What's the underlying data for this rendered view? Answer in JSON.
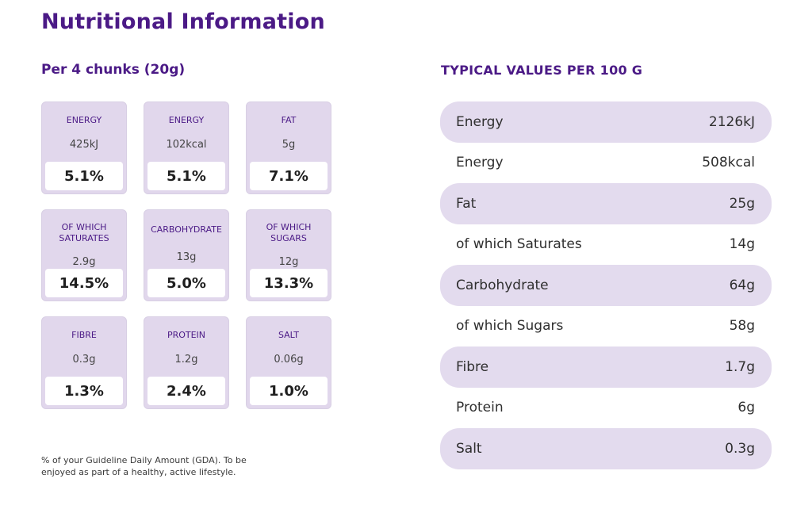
{
  "page": {
    "title": "Nutritional Information",
    "per_portion_heading": "Per 4 chunks (20g)",
    "typical_values_heading": "TYPICAL VALUES PER 100 G",
    "footnote": "% of your Guideline Daily Amount (GDA). To be enjoyed as part of a healthy, active lifestyle."
  },
  "gda_cards": [
    {
      "label": "ENERGY",
      "amount": "425kJ",
      "percent": "5.1%"
    },
    {
      "label": "ENERGY",
      "amount": "102kcal",
      "percent": "5.1%"
    },
    {
      "label": "FAT",
      "amount": "5g",
      "percent": "7.1%"
    },
    {
      "label": "OF WHICH SATURATES",
      "amount": "2.9g",
      "percent": "14.5%"
    },
    {
      "label": "CARBOHYDRATE",
      "amount": "13g",
      "percent": "5.0%"
    },
    {
      "label": "OF WHICH SUGARS",
      "amount": "12g",
      "percent": "13.3%"
    },
    {
      "label": "FIBRE",
      "amount": "0.3g",
      "percent": "1.3%"
    },
    {
      "label": "PROTEIN",
      "amount": "1.2g",
      "percent": "2.4%"
    },
    {
      "label": "SALT",
      "amount": "0.06g",
      "percent": "1.0%"
    }
  ],
  "typical_values": [
    {
      "name": "Energy",
      "value": "2126kJ"
    },
    {
      "name": "Energy",
      "value": "508kcal"
    },
    {
      "name": "Fat",
      "value": "25g"
    },
    {
      "name": "of which Saturates",
      "value": "14g"
    },
    {
      "name": "Carbohydrate",
      "value": "64g"
    },
    {
      "name": "of which Sugars",
      "value": "58g"
    },
    {
      "name": "Fibre",
      "value": "1.7g"
    },
    {
      "name": "Protein",
      "value": "6g"
    },
    {
      "name": "Salt",
      "value": "0.3g"
    }
  ],
  "colors": {
    "accent": "#4b1a86",
    "card_bg": "#e1d7ec",
    "row_shade": "#e3dbee"
  }
}
